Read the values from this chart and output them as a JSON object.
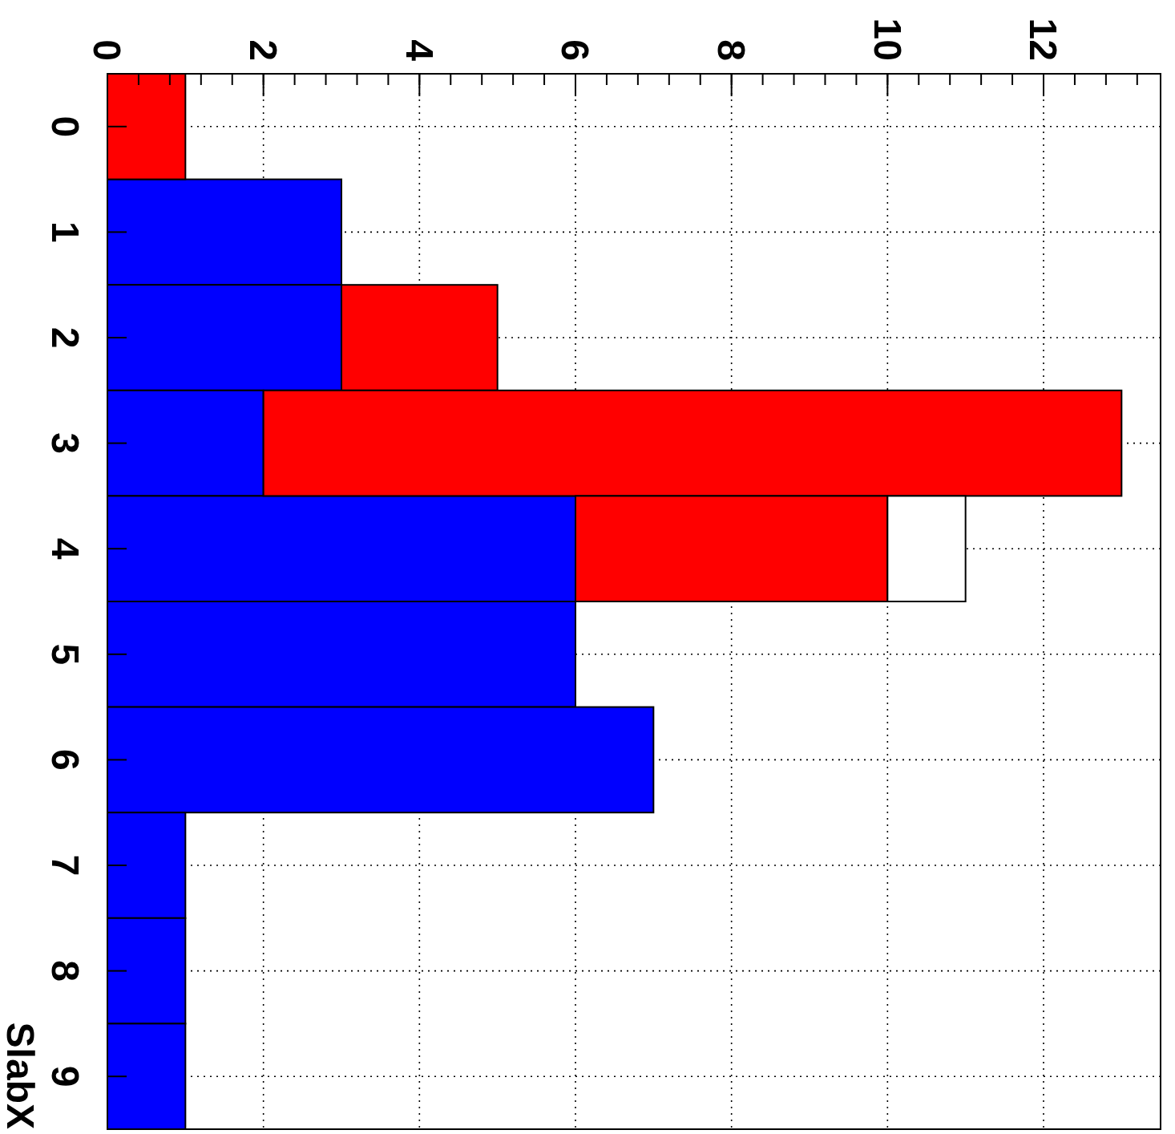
{
  "chart_data": {
    "type": "bar",
    "stacked": true,
    "orientation": "horizontal",
    "ylabel": "SlabX",
    "categories": [
      "0",
      "1",
      "2",
      "3",
      "4",
      "5",
      "6",
      "7",
      "8",
      "9"
    ],
    "series": [
      {
        "color": "#0000ff",
        "values": [
          0,
          3,
          3,
          2,
          6,
          6,
          7,
          1,
          1,
          1
        ]
      },
      {
        "color": "#ff0000",
        "values": [
          1,
          0,
          2,
          11,
          4,
          0,
          0,
          0,
          0,
          0
        ]
      },
      {
        "color": "#ffffff",
        "values": [
          0,
          0,
          0,
          0,
          1,
          0,
          0,
          0,
          0,
          0
        ]
      }
    ],
    "xlim": [
      0,
      13.5
    ],
    "xticks": [
      0,
      2,
      4,
      6,
      8,
      10,
      12
    ],
    "grid": true
  }
}
